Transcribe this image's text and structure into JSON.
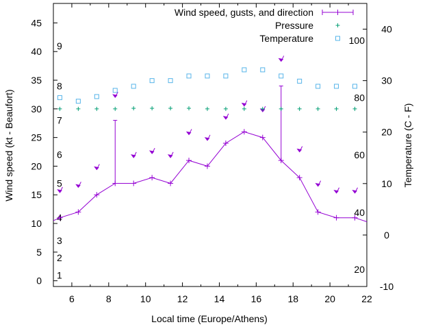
{
  "chart_data": {
    "type": "line",
    "title": "",
    "xlabel": "Local time (Europe/Athens)",
    "ylabel": "Wind speed (kt - Beaufort)",
    "y2label": "Temperature (C - F)",
    "xlim": [
      5,
      22
    ],
    "ylim": [
      -1,
      48.4
    ],
    "y2lim": [
      -10,
      45
    ],
    "x_ticks": [
      "6",
      "8",
      "10",
      "12",
      "14",
      "16",
      "18",
      "20",
      "22"
    ],
    "y_ticks": [
      "0",
      "5",
      "10",
      "15",
      "20",
      "25",
      "30",
      "35",
      "40",
      "45"
    ],
    "y2_ticks": [
      "-10",
      "0",
      "10",
      "20",
      "30",
      "40"
    ],
    "beaufort_labels": [
      {
        "text": "1",
        "y": 1
      },
      {
        "text": "2",
        "y": 4
      },
      {
        "text": "3",
        "y": 7
      },
      {
        "text": "4",
        "y": 11
      },
      {
        "text": "5",
        "y": 17
      },
      {
        "text": "6",
        "y": 22
      },
      {
        "text": "7",
        "y": 28
      },
      {
        "text": "8",
        "y": 34
      },
      {
        "text": "9",
        "y": 41
      }
    ],
    "fahrenheit_labels": [
      {
        "text": "20",
        "y2": -6.7
      },
      {
        "text": "40",
        "y2": 4.4
      },
      {
        "text": "60",
        "y2": 15.6
      },
      {
        "text": "80",
        "y2": 26.7
      },
      {
        "text": "100",
        "y2": 37.8
      }
    ],
    "legend": {
      "position": "top-right",
      "entries": [
        {
          "label": "Wind speed, gusts, and direction",
          "color": "#9400d3",
          "marker": "line-plus"
        },
        {
          "label": "Pressure",
          "color": "#009e73",
          "marker": "plus"
        },
        {
          "label": "Temperature",
          "color": "#56b4e9",
          "marker": "square"
        }
      ]
    },
    "series": [
      {
        "name": "Wind speed, gusts, and direction",
        "color": "#9400d3",
        "x": [
          5,
          5.35,
          6.35,
          7.35,
          8.35,
          9.35,
          10.35,
          11.35,
          12.35,
          13.35,
          14.35,
          15.35,
          16.35,
          17.35,
          18.35,
          19.35,
          20.35,
          21.35,
          22
        ],
        "y": [
          10.5,
          11,
          12,
          15,
          17,
          17,
          18,
          17,
          21,
          20,
          24,
          26,
          25,
          21,
          18,
          12,
          11,
          11,
          10.3
        ],
        "gusts": [
          {
            "x": 8.35,
            "y": 28
          },
          {
            "x": 17.35,
            "y": 34
          }
        ],
        "direction_arrows": [
          {
            "x": 5.35,
            "y": 15.4
          },
          {
            "x": 6.35,
            "y": 16.3
          },
          {
            "x": 7.35,
            "y": 19.4
          },
          {
            "x": 8.35,
            "y": 32
          },
          {
            "x": 9.35,
            "y": 21.5
          },
          {
            "x": 10.35,
            "y": 22.2
          },
          {
            "x": 11.35,
            "y": 21.5
          },
          {
            "x": 12.35,
            "y": 25.5
          },
          {
            "x": 13.35,
            "y": 24.5
          },
          {
            "x": 14.35,
            "y": 28.2
          },
          {
            "x": 15.35,
            "y": 30.5
          },
          {
            "x": 16.35,
            "y": 29.5
          },
          {
            "x": 17.35,
            "y": 38.3
          },
          {
            "x": 18.35,
            "y": 22.5
          },
          {
            "x": 19.35,
            "y": 16.5
          },
          {
            "x": 20.35,
            "y": 15.3
          },
          {
            "x": 21.35,
            "y": 15.3
          }
        ]
      },
      {
        "name": "Pressure",
        "color": "#009e73",
        "x": [
          5.35,
          6.35,
          7.35,
          8.35,
          9.35,
          10.35,
          11.35,
          12.35,
          13.35,
          14.35,
          15.35,
          16.35,
          17.35,
          18.35,
          19.35,
          20.35,
          21.35
        ],
        "y": [
          30,
          30,
          30,
          30,
          30.1,
          30.1,
          30.1,
          30.1,
          30,
          30,
          30,
          30,
          30,
          30,
          30,
          30,
          30
        ]
      },
      {
        "name": "Temperature",
        "color": "#56b4e9",
        "axis": "y2",
        "x": [
          5.35,
          6.35,
          7.35,
          8.35,
          9.35,
          10.35,
          11.35,
          12.35,
          13.35,
          14.35,
          15.35,
          16.35,
          17.35,
          18.35,
          19.35,
          20.35,
          21.35
        ],
        "y": [
          26.7,
          26,
          26.9,
          28.1,
          28.9,
          30,
          30,
          30.9,
          30.9,
          30.9,
          32.1,
          32.1,
          30.9,
          29.9,
          28.9,
          28.9,
          28.9
        ]
      }
    ]
  }
}
